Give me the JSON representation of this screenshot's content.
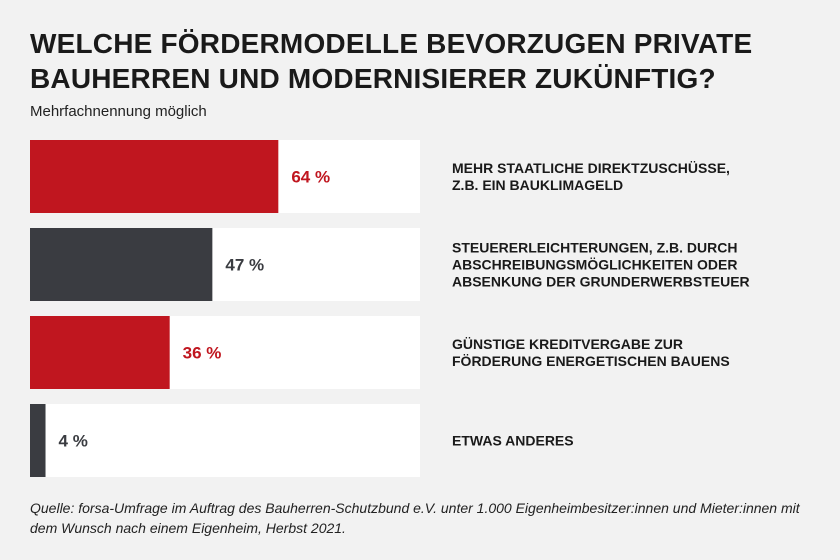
{
  "chart_data": {
    "type": "bar",
    "orientation": "horizontal",
    "title": "WELCHE FÖRDERMODELLE BEVORZUGEN PRIVATE BAUHERREN UND MODERNISIERER ZUKÜNFTIG?",
    "subtitle": "Mehrfachnennung möglich",
    "categories": [
      [
        "MEHR STAATLICHE DIREKTZUSCHÜSSE,",
        "Z.B. EIN BAUKLIMAGELD"
      ],
      [
        "STEUERERLEICHTERUNGEN, Z.B. DURCH",
        "ABSCHREIBUNGSMÖGLICHKEITEN ODER",
        "ABSENKUNG DER GRUNDERWERBSTEUER"
      ],
      [
        "GÜNSTIGE KREDITVERGABE ZUR",
        "FÖRDERUNG ENERGETISCHEN BAUENS"
      ],
      [
        "ETWAS ANDERES"
      ]
    ],
    "values": [
      64,
      47,
      36,
      4
    ],
    "value_labels": [
      "64 %",
      "47 %",
      "36 %",
      "4 %"
    ],
    "unit": "%",
    "xlim": [
      0,
      100
    ],
    "bar_colors": [
      "#c0161f",
      "#3a3c41",
      "#c0161f",
      "#3a3c41"
    ],
    "value_label_colors": [
      "#c0161f",
      "#3a3c41",
      "#c0161f",
      "#3a3c41"
    ],
    "track_color": "#ffffff",
    "grid": false,
    "legend": "none"
  },
  "source": "Quelle: forsa-Umfrage im Auftrag des Bauherren-Schutzbund e.V. unter 1.000 Eigenheimbesitzer:innen und Mieter:innen mit dem Wunsch nach einem Eigenheim, Herbst 2021."
}
